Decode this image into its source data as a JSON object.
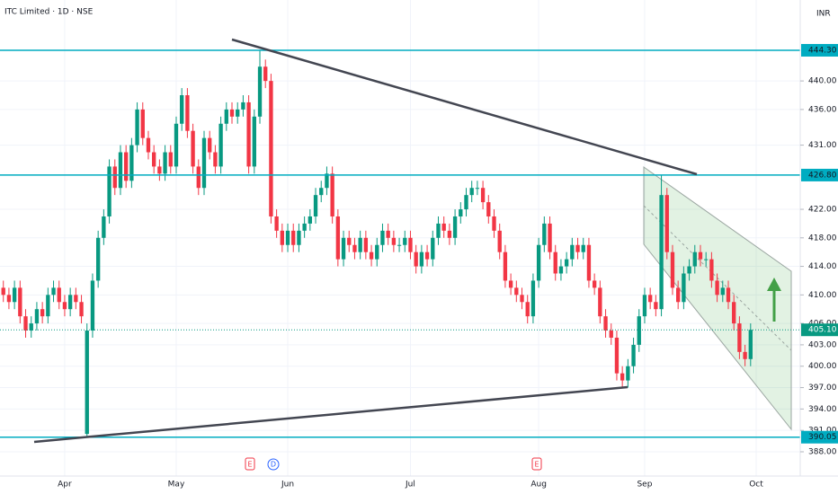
{
  "header": {
    "title": "ITC Limited · 1D · NSE",
    "currency": "INR"
  },
  "events": [
    "E",
    "D",
    "E"
  ],
  "chart_data": {
    "type": "candlestick",
    "up_color": "#089981",
    "down_color": "#f23645",
    "open": [
      411,
      410,
      409,
      411,
      407,
      405,
      406,
      408,
      407,
      410,
      411,
      409,
      408,
      410,
      409,
      390.5,
      405,
      412,
      418,
      421,
      428,
      425,
      430,
      426,
      431,
      436,
      432,
      430,
      428,
      427,
      430,
      428,
      434,
      438,
      433,
      428,
      425,
      432,
      430,
      428,
      434,
      436,
      435,
      436,
      437,
      428,
      435,
      442,
      440,
      421,
      419,
      417,
      419,
      417,
      419,
      420,
      421,
      424,
      425,
      427,
      421,
      415,
      418,
      417,
      416,
      418,
      416,
      415,
      417,
      419,
      418,
      417,
      417,
      418,
      416,
      414,
      416,
      415,
      418,
      420,
      419,
      418,
      421,
      422,
      424,
      425,
      425,
      423,
      421,
      419,
      416,
      412,
      411,
      410,
      409,
      407,
      412,
      417,
      420,
      416,
      413,
      414,
      415,
      417,
      416,
      417,
      412,
      411,
      407,
      405,
      404,
      399,
      398,
      400,
      403,
      407,
      410,
      409,
      408,
      424,
      416,
      411,
      409,
      413,
      414,
      416,
      415,
      415,
      412,
      410,
      411,
      409,
      406,
      402,
      401
    ],
    "high": [
      412,
      411,
      412,
      412,
      408,
      407,
      409,
      409,
      411,
      412,
      412,
      410,
      411,
      411,
      410,
      406,
      413,
      419,
      422,
      429,
      429,
      431,
      431,
      432,
      437,
      437,
      433,
      431,
      429,
      431,
      431,
      435,
      439,
      439,
      434,
      429,
      433,
      433,
      431,
      435,
      437,
      437,
      437,
      438,
      438,
      436,
      444.3,
      443,
      441,
      422,
      420,
      420,
      420,
      420,
      421,
      422,
      425,
      426,
      428,
      428,
      422,
      419,
      419,
      418,
      419,
      419,
      417,
      418,
      420,
      420,
      419,
      418,
      419,
      419,
      417,
      417,
      417,
      419,
      421,
      421,
      420,
      422,
      423,
      425,
      426,
      426,
      426,
      424,
      422,
      420,
      417,
      413,
      412,
      411,
      410,
      413,
      418,
      421,
      421,
      417,
      415,
      416,
      418,
      418,
      418,
      418,
      413,
      412,
      408,
      406,
      405,
      400,
      401,
      404,
      408,
      411,
      411,
      410,
      426.8,
      425,
      417,
      412,
      414,
      415,
      417,
      417,
      416,
      416,
      413,
      412,
      412,
      410,
      407,
      403,
      406
    ],
    "low": [
      409,
      408,
      408,
      406,
      404,
      404,
      405,
      406,
      406,
      409,
      408,
      407,
      407,
      408,
      406,
      390.05,
      404,
      411,
      417,
      420,
      424,
      424,
      425,
      425,
      430,
      431,
      429,
      427,
      426,
      426,
      427,
      427,
      433,
      432,
      427,
      424,
      424,
      429,
      427,
      427,
      433,
      434,
      434,
      435,
      427,
      427,
      434,
      439,
      420,
      418,
      416,
      416,
      416,
      416,
      418,
      419,
      420,
      423,
      424,
      420,
      414,
      414,
      416,
      415,
      415,
      415,
      414,
      414,
      416,
      417,
      416,
      416,
      416,
      415,
      413,
      413,
      414,
      414,
      417,
      418,
      417,
      417,
      420,
      421,
      423,
      424,
      422,
      420,
      418,
      415,
      411,
      410,
      409,
      408,
      406,
      406,
      411,
      416,
      415,
      412,
      412,
      413,
      414,
      415,
      415,
      411,
      410,
      406,
      404,
      403,
      398,
      397,
      397,
      399,
      402,
      406,
      408,
      407,
      407,
      415,
      410,
      408,
      408,
      412,
      413,
      414,
      414,
      411,
      409,
      409,
      408,
      405,
      401,
      400,
      400
    ],
    "close": [
      410,
      409,
      411,
      407,
      405,
      406,
      408,
      407,
      410,
      411,
      409,
      408,
      410,
      409,
      407,
      405,
      412,
      418,
      421,
      428,
      425,
      430,
      426,
      431,
      436,
      432,
      430,
      428,
      427,
      430,
      428,
      434,
      438,
      433,
      428,
      425,
      432,
      430,
      428,
      434,
      436,
      435,
      436,
      437,
      428,
      435,
      442,
      440,
      421,
      419,
      417,
      419,
      417,
      419,
      420,
      421,
      424,
      425,
      427,
      421,
      415,
      418,
      417,
      416,
      418,
      416,
      415,
      417,
      419,
      418,
      417,
      417,
      418,
      416,
      414,
      416,
      415,
      418,
      420,
      419,
      418,
      421,
      422,
      424,
      425,
      425,
      423,
      421,
      419,
      416,
      412,
      411,
      410,
      409,
      407,
      412,
      417,
      420,
      416,
      413,
      414,
      415,
      417,
      416,
      417,
      412,
      411,
      407,
      405,
      404,
      399,
      398,
      400,
      403,
      407,
      410,
      409,
      408,
      424,
      416,
      411,
      409,
      413,
      414,
      416,
      415,
      415,
      412,
      410,
      411,
      409,
      406,
      402,
      401,
      405.1
    ],
    "xlim": [
      -0.6,
      142.9
    ],
    "xticks": [
      {
        "value": 11,
        "label": "Apr"
      },
      {
        "value": 31,
        "label": "May"
      },
      {
        "value": 51,
        "label": "Jun"
      },
      {
        "value": 73,
        "label": "Jul"
      },
      {
        "value": 96,
        "label": "Aug"
      },
      {
        "value": 115,
        "label": "Sep"
      },
      {
        "value": 135,
        "label": "Oct"
      }
    ],
    "ylim": [
      384.6,
      451.35
    ],
    "yticks": [
      {
        "value": 440,
        "label": "440.00"
      },
      {
        "value": 436,
        "label": "436.00"
      },
      {
        "value": 431,
        "label": "431.00"
      },
      {
        "value": 422,
        "label": "422.00"
      },
      {
        "value": 418,
        "label": "418.00"
      },
      {
        "value": 414,
        "label": "414.00"
      },
      {
        "value": 410,
        "label": "410.00"
      },
      {
        "value": 406,
        "label": "406.00"
      },
      {
        "value": 403,
        "label": "403.00"
      },
      {
        "value": 400,
        "label": "400.00"
      },
      {
        "value": 397,
        "label": "397.00"
      },
      {
        "value": 394,
        "label": "394.00"
      },
      {
        "value": 391,
        "label": "391.00"
      },
      {
        "value": 388,
        "label": "388.00"
      }
    ],
    "grid": true,
    "price_lines": [
      {
        "value": 444.3,
        "label": "444.30"
      },
      {
        "value": 426.8,
        "label": "426.80"
      },
      {
        "value": 390.05,
        "label": "390.05"
      }
    ],
    "price_line_color": "#00acc1",
    "last_price": {
      "value": 405.1,
      "label": "405.10"
    },
    "last_price_color": "#089981"
  }
}
